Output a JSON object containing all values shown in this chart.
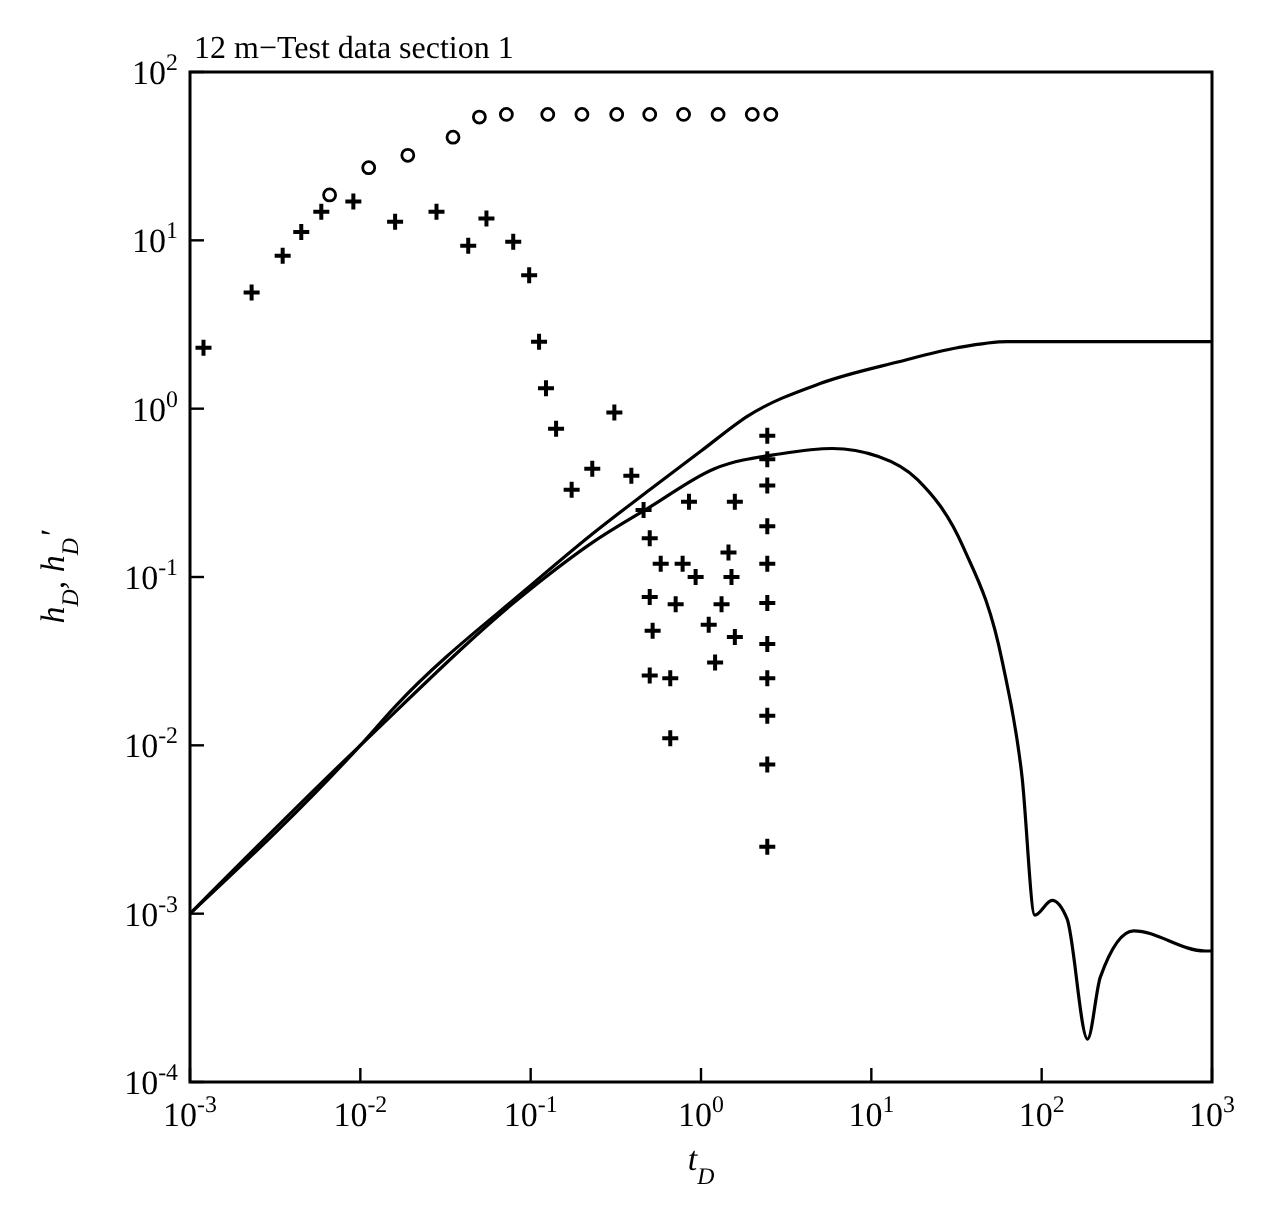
{
  "chart_data": {
    "type": "scatter",
    "title": "12 m−Test data section 1",
    "xlabel": "t$_{D}$",
    "ylabel": "h$_{D}$, h$_{D}$′",
    "log": "xy",
    "grid": false,
    "xlim": [
      0.001,
      1000
    ],
    "ylim": [
      0.0001,
      100
    ],
    "xticks": [
      {
        "value": 0.001,
        "label": "10$^{-3}$"
      },
      {
        "value": 0.01,
        "label": "10$^{-2}$"
      },
      {
        "value": 0.1,
        "label": "10$^{-1}$"
      },
      {
        "value": 1,
        "label": "10$^{0}$"
      },
      {
        "value": 10,
        "label": "10$^{1}$"
      },
      {
        "value": 100,
        "label": "10$^{2}$"
      },
      {
        "value": 1000,
        "label": "10$^{3}$"
      }
    ],
    "yticks": [
      {
        "value": 0.0001,
        "label": "10$^{-4}$"
      },
      {
        "value": 0.001,
        "label": "10$^{-3}$"
      },
      {
        "value": 0.01,
        "label": "10$^{-2}$"
      },
      {
        "value": 0.1,
        "label": "10$^{-1}$"
      },
      {
        "value": 1,
        "label": "10$^{0}$"
      },
      {
        "value": 10,
        "label": "10$^{1}$"
      },
      {
        "value": 100,
        "label": "10$^{2}$"
      }
    ],
    "series": [
      {
        "type": "line",
        "color": "#000000",
        "marker": "none",
        "line_style": "solid",
        "x": [
          0.001,
          0.01,
          0.016,
          0.1,
          0.23,
          0.5,
          1,
          1.9,
          5,
          14.5,
          32,
          63,
          1000
        ],
        "values": [
          0.001,
          0.01,
          0.017,
          0.089,
          0.18,
          0.33,
          0.56,
          0.91,
          1.41,
          1.9,
          2.3,
          2.5,
          2.5
        ]
      },
      {
        "type": "line",
        "color": "#000000",
        "marker": "none",
        "line_style": "solid",
        "x": [
          0.001,
          0.01,
          0.1,
          0.23,
          0.5,
          1.2,
          2.95,
          5.9,
          11,
          18.6,
          34.7,
          58.9,
          76.7,
          91.2,
          115,
          141,
          186,
          221,
          347,
          912,
          1000
        ],
        "values": [
          0.001,
          0.01,
          0.085,
          0.16,
          0.26,
          0.44,
          0.54,
          0.58,
          0.52,
          0.38,
          0.15,
          0.031,
          0.0065,
          0.00098,
          0.0012,
          0.00093,
          0.00018,
          0.00042,
          0.00079,
          0.0006,
          0.0006
        ]
      },
      {
        "color": "#000000",
        "marker": "circle",
        "x": [
          0.0066,
          0.0112,
          0.019,
          0.035,
          0.05,
          0.072,
          0.126,
          0.2,
          0.32,
          0.5,
          0.79,
          1.26,
          2,
          2.57
        ],
        "values": [
          18.6,
          27,
          32,
          41,
          54,
          56,
          56,
          56,
          56,
          56,
          56,
          56,
          56,
          56
        ]
      },
      {
        "color": "#000000",
        "marker": "cross",
        "x": [
          0.0012,
          0.0023,
          0.0035,
          0.0045,
          0.0059,
          0.0091,
          0.016,
          0.028,
          0.043,
          0.055,
          0.079,
          0.098,
          0.112,
          0.123,
          0.141,
          0.174,
          0.23,
          0.31,
          0.39,
          0.46,
          0.5,
          0.58,
          0.5,
          0.52,
          0.5,
          0.66,
          0.66,
          0.85,
          0.78,
          0.71,
          0.93,
          1.11,
          1.21,
          1.58,
          1.45,
          1.51,
          1.32,
          1.58,
          2.45,
          2.45,
          2.45,
          2.45,
          2.45,
          2.45,
          2.45,
          2.45,
          2.45,
          2.45,
          2.45
        ],
        "values": [
          2.3,
          4.9,
          8.1,
          11.2,
          14.8,
          17,
          12.9,
          14.8,
          9.3,
          13.5,
          9.8,
          6.2,
          2.5,
          1.32,
          0.76,
          0.33,
          0.44,
          0.95,
          0.4,
          0.25,
          0.17,
          0.12,
          0.076,
          0.048,
          0.026,
          0.011,
          0.025,
          0.28,
          0.12,
          0.069,
          0.1,
          0.052,
          0.031,
          0.28,
          0.14,
          0.1,
          0.069,
          0.044,
          0.69,
          0.5,
          0.35,
          0.2,
          0.12,
          0.07,
          0.04,
          0.025,
          0.015,
          0.0077,
          0.0025
        ]
      }
    ]
  }
}
